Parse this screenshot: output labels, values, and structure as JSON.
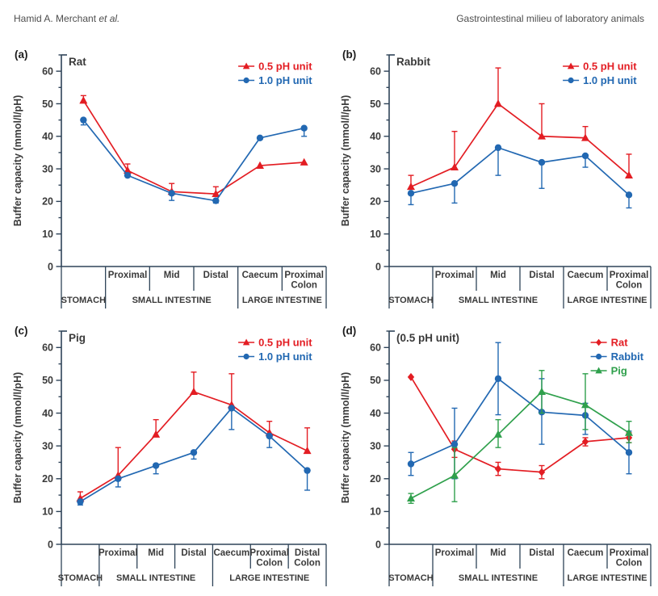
{
  "header": {
    "author": "Hamid A. Merchant ",
    "author_etal": "et al.",
    "title_right": "Gastrointestinal milieu of laboratory animals"
  },
  "styles": {
    "red": "#e31d23",
    "blue": "#2268b2",
    "green": "#2fa04c",
    "axis": "#2e4358",
    "label": "#3a3a3a"
  },
  "chart_data": [
    {
      "panel_letter": "(a)",
      "title": "Rat",
      "type": "line",
      "ylabel": "Buffer capacity (mmol/l/pH)",
      "ylim": [
        0,
        65
      ],
      "ytick_major": 10,
      "ytick_minor": 5,
      "ytick_max": 60,
      "row1_labels": [
        "",
        "Proximal",
        "Mid",
        "Distal",
        "Caecum",
        "Proximal|Colon"
      ],
      "groups": [
        {
          "label": "STOMACH",
          "from": 0,
          "to": 0
        },
        {
          "label": "SMALL INTESTINE",
          "from": 1,
          "to": 3
        },
        {
          "label": "LARGE INTESTINE",
          "from": 4,
          "to": 5
        }
      ],
      "series": [
        {
          "name": "0.5 pH unit",
          "color": "#e31d23",
          "marker": "triangle",
          "values": [
            51,
            29.5,
            23,
            22.3,
            31,
            32
          ],
          "err_lo": [
            51,
            29.5,
            23,
            22.3,
            31,
            32
          ],
          "err_hi": [
            52.5,
            31.5,
            25.5,
            24.5,
            31,
            32
          ]
        },
        {
          "name": "1.0 pH unit",
          "color": "#2268b2",
          "marker": "circle",
          "values": [
            45,
            28,
            22.5,
            20.2,
            39.5,
            42.5
          ],
          "err_lo": [
            43.5,
            28,
            20.3,
            19.5,
            39.5,
            40
          ],
          "err_hi": [
            45,
            28,
            22.5,
            20.2,
            39.5,
            42.5
          ]
        }
      ]
    },
    {
      "panel_letter": "(b)",
      "title": "Rabbit",
      "type": "line",
      "ylabel": "Buffer capacity (mmol/l/pH)",
      "ylim": [
        0,
        65
      ],
      "ytick_major": 10,
      "ytick_minor": 5,
      "ytick_max": 60,
      "row1_labels": [
        "",
        "Proximal",
        "Mid",
        "Distal",
        "Caecum",
        "Proximal|Colon"
      ],
      "groups": [
        {
          "label": "STOMACH",
          "from": 0,
          "to": 0
        },
        {
          "label": "SMALL INTESTINE",
          "from": 1,
          "to": 3
        },
        {
          "label": "LARGE INTESTINE",
          "from": 4,
          "to": 5
        }
      ],
      "series": [
        {
          "name": "0.5 pH unit",
          "color": "#e31d23",
          "marker": "triangle",
          "values": [
            24.5,
            30.5,
            50,
            40,
            39.5,
            28
          ],
          "err_lo": [
            24.5,
            30.5,
            50,
            40,
            39.5,
            28
          ],
          "err_hi": [
            28,
            41.5,
            61,
            50,
            43,
            34.5
          ]
        },
        {
          "name": "1.0 pH unit",
          "color": "#2268b2",
          "marker": "circle",
          "values": [
            22.5,
            25.5,
            36.5,
            32,
            34,
            22
          ],
          "err_lo": [
            19,
            19.5,
            28,
            24,
            30.5,
            18
          ],
          "err_hi": [
            22.5,
            25.5,
            36.5,
            32,
            34,
            22
          ]
        }
      ]
    },
    {
      "panel_letter": "(c)",
      "title": "Pig",
      "type": "line",
      "ylabel": "Buffer capacity (mmol/l/pH)",
      "ylim": [
        0,
        65
      ],
      "ytick_major": 10,
      "ytick_minor": 5,
      "ytick_max": 60,
      "row1_labels": [
        "",
        "Proximal",
        "Mid",
        "Distal",
        "Caecum",
        "Proximal|Colon",
        "Distal|Colon"
      ],
      "groups": [
        {
          "label": "STOMACH",
          "from": 0,
          "to": 0
        },
        {
          "label": "SMALL INTESTINE",
          "from": 1,
          "to": 3
        },
        {
          "label": "LARGE INTESTINE",
          "from": 4,
          "to": 6
        }
      ],
      "series": [
        {
          "name": "0.5 pH unit",
          "color": "#e31d23",
          "marker": "triangle",
          "values": [
            14,
            21,
            33.5,
            46.5,
            42.5,
            34,
            28.5
          ],
          "err_lo": [
            14,
            21,
            33.5,
            46.5,
            42.5,
            34,
            28.5
          ],
          "err_hi": [
            16,
            29.5,
            38,
            52.5,
            52,
            37.5,
            35.5
          ]
        },
        {
          "name": "1.0 pH unit",
          "color": "#2268b2",
          "marker": "circle",
          "values": [
            13,
            20,
            24,
            28,
            41.5,
            33,
            22.5
          ],
          "err_lo": [
            12,
            17.5,
            21.5,
            26,
            35,
            29.5,
            16.5
          ],
          "err_hi": [
            13,
            20,
            24,
            28,
            41.5,
            33,
            22.5
          ]
        }
      ]
    },
    {
      "panel_letter": "(d)",
      "title": "(0.5 pH unit)",
      "type": "line",
      "ylabel": "Buffer capacity (mmol/l/pH)",
      "ylim": [
        0,
        65
      ],
      "ytick_major": 10,
      "ytick_minor": 5,
      "ytick_max": 60,
      "row1_labels": [
        "",
        "Proximal",
        "Mid",
        "Distal",
        "Caecum",
        "Proximal|Colon"
      ],
      "groups": [
        {
          "label": "STOMACH",
          "from": 0,
          "to": 0
        },
        {
          "label": "SMALL INTESTINE",
          "from": 1,
          "to": 3
        },
        {
          "label": "LARGE INTESTINE",
          "from": 4,
          "to": 5
        }
      ],
      "series": [
        {
          "name": "Rat",
          "color": "#e31d23",
          "marker": "diamond",
          "values": [
            51,
            29,
            23,
            22,
            31.3,
            32.5
          ],
          "err_lo": [
            51,
            26.5,
            21,
            20,
            30,
            31
          ],
          "err_hi": [
            51,
            31.5,
            25,
            24,
            32.5,
            34
          ]
        },
        {
          "name": "Rabbit",
          "color": "#2268b2",
          "marker": "circle",
          "values": [
            24.5,
            30.5,
            50.5,
            40.3,
            39.3,
            28
          ],
          "err_lo": [
            21,
            20,
            39.5,
            30.5,
            33.5,
            21.5
          ],
          "err_hi": [
            28,
            41.5,
            61.5,
            50.5,
            43,
            34.5
          ]
        },
        {
          "name": "Pig",
          "color": "#2fa04c",
          "marker": "triangle",
          "values": [
            14,
            21,
            33.5,
            46.5,
            42.5,
            34
          ],
          "err_lo": [
            12.5,
            13,
            29.5,
            40,
            35,
            31
          ],
          "err_hi": [
            15.5,
            29.5,
            38,
            53,
            52,
            37.5
          ]
        }
      ]
    }
  ]
}
